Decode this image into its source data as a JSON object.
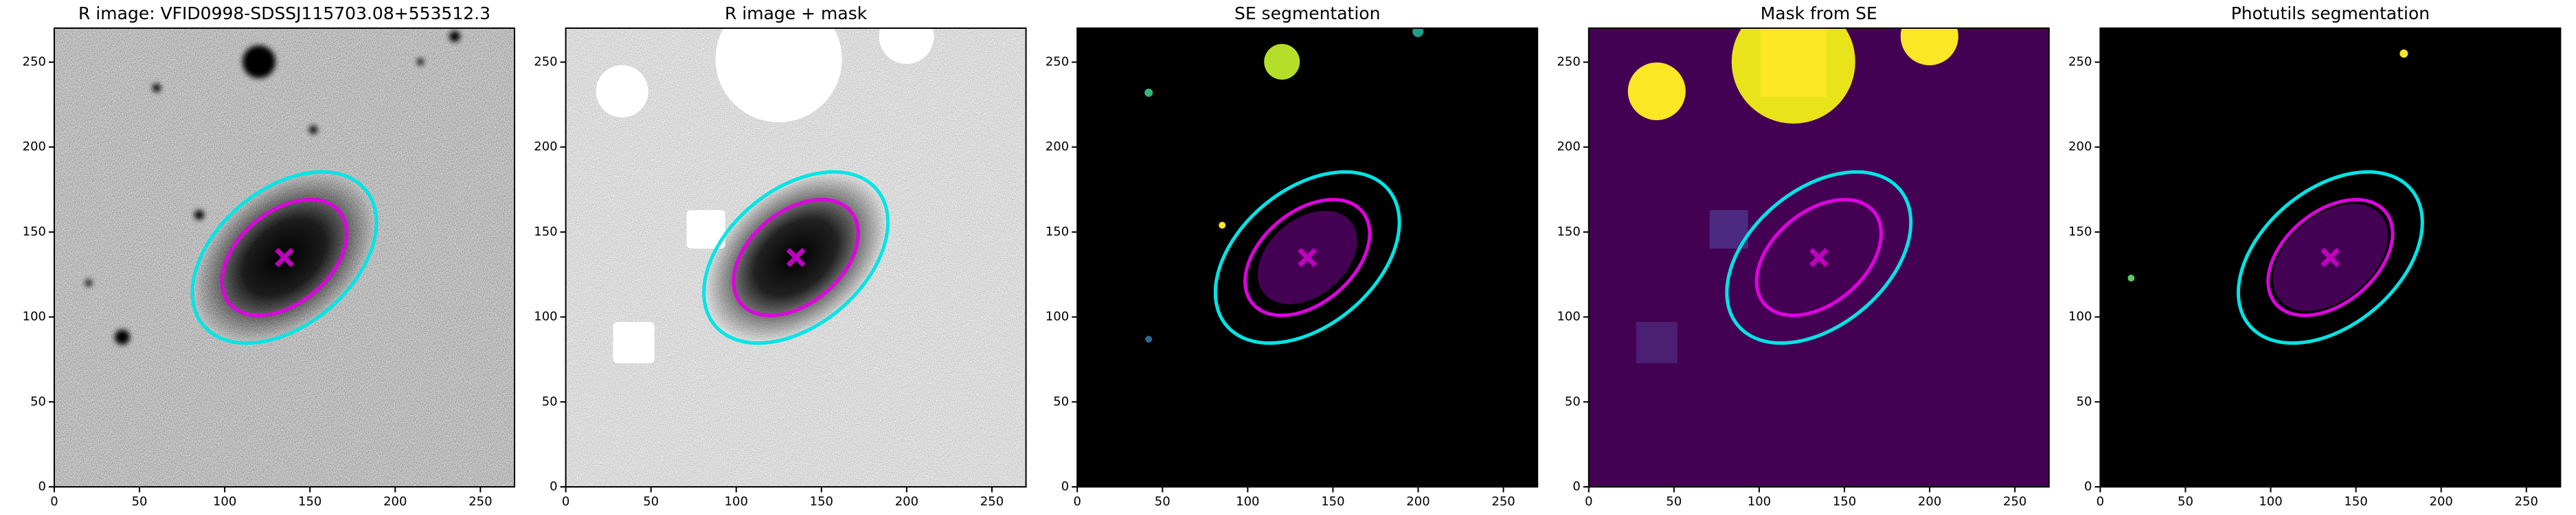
{
  "chart_data": [
    {
      "type": "image",
      "title": "R image: VFID0998-SDSSJ115703.08+553512.3",
      "xlim": [
        0,
        270
      ],
      "ylim": [
        0,
        270
      ],
      "xticks": [
        0,
        50,
        100,
        150,
        200,
        250
      ],
      "yticks": [
        0,
        50,
        100,
        150,
        200,
        250
      ],
      "ellipses": [
        {
          "x": 135,
          "y": 135,
          "a": 62,
          "b": 40,
          "angle": 40,
          "color": "#00e5e5"
        },
        {
          "x": 135,
          "y": 135,
          "a": 42,
          "b": 27,
          "angle": 40,
          "color": "#e000e0"
        }
      ],
      "marker": {
        "x": 135,
        "y": 135,
        "color": "#bf00bf"
      }
    },
    {
      "type": "image",
      "title": "R image + mask",
      "xlim": [
        0,
        270
      ],
      "ylim": [
        0,
        270
      ],
      "xticks": [
        0,
        50,
        100,
        150,
        200,
        250
      ],
      "yticks": [
        0,
        50,
        100,
        150,
        200,
        250
      ],
      "ellipses": [
        {
          "x": 135,
          "y": 135,
          "a": 62,
          "b": 40,
          "angle": 40,
          "color": "#00e5e5"
        },
        {
          "x": 135,
          "y": 135,
          "a": 42,
          "b": 27,
          "angle": 40,
          "color": "#e000e0"
        }
      ],
      "marker": {
        "x": 135,
        "y": 135,
        "color": "#bf00bf"
      }
    },
    {
      "type": "image",
      "title": "SE segmentation",
      "xlim": [
        0,
        270
      ],
      "ylim": [
        0,
        270
      ],
      "xticks": [
        0,
        50,
        100,
        150,
        200,
        250
      ],
      "yticks": [
        0,
        50,
        100,
        150,
        200,
        250
      ],
      "ellipses": [
        {
          "x": 135,
          "y": 135,
          "a": 62,
          "b": 40,
          "angle": 40,
          "color": "#00e5e5"
        },
        {
          "x": 135,
          "y": 135,
          "a": 42,
          "b": 27,
          "angle": 40,
          "color": "#e000e0"
        }
      ],
      "marker": {
        "x": 135,
        "y": 135,
        "color": "#bf00bf"
      }
    },
    {
      "type": "image",
      "title": "Mask from SE",
      "xlim": [
        0,
        270
      ],
      "ylim": [
        0,
        270
      ],
      "xticks": [
        0,
        50,
        100,
        150,
        200,
        250
      ],
      "yticks": [
        0,
        50,
        100,
        150,
        200,
        250
      ],
      "ellipses": [
        {
          "x": 135,
          "y": 135,
          "a": 62,
          "b": 40,
          "angle": 40,
          "color": "#00e5e5"
        },
        {
          "x": 135,
          "y": 135,
          "a": 42,
          "b": 27,
          "angle": 40,
          "color": "#e000e0"
        }
      ],
      "marker": {
        "x": 135,
        "y": 135,
        "color": "#bf00bf"
      }
    },
    {
      "type": "image",
      "title": "Photutils segmentation",
      "xlim": [
        0,
        270
      ],
      "ylim": [
        0,
        270
      ],
      "xticks": [
        0,
        50,
        100,
        150,
        200,
        250
      ],
      "yticks": [
        0,
        50,
        100,
        150,
        200,
        250
      ],
      "ellipses": [
        {
          "x": 135,
          "y": 135,
          "a": 62,
          "b": 40,
          "angle": 40,
          "color": "#00e5e5"
        },
        {
          "x": 135,
          "y": 135,
          "a": 42,
          "b": 27,
          "angle": 40,
          "color": "#e000e0"
        }
      ],
      "marker": {
        "x": 135,
        "y": 135,
        "color": "#bf00bf"
      }
    }
  ]
}
